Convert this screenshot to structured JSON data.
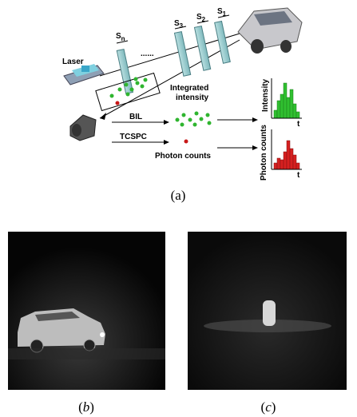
{
  "figure": {
    "panel_a": {
      "laser": "Laser",
      "filters": [
        {
          "base": "S",
          "sub": "n"
        },
        {
          "base": "S",
          "sub": "3"
        },
        {
          "base": "S",
          "sub": "2"
        },
        {
          "base": "S",
          "sub": "1"
        }
      ],
      "dots": "......",
      "integrated_intensity": [
        "Integrated",
        "intensity"
      ],
      "bil": "BIL",
      "tcspc": "TCSPC",
      "photon_counts": "Photon counts",
      "hist_intensity": {
        "y_label": "Intensity",
        "x_label": "t"
      },
      "hist_counts": {
        "y_label": "Photon counts",
        "x_label": "t"
      },
      "caption": "(a)"
    },
    "panel_b": {
      "caption_open": "(",
      "caption_letter": "b",
      "caption_close": ")"
    },
    "panel_c": {
      "caption_open": "(",
      "caption_letter": "c",
      "caption_close": ")"
    }
  }
}
